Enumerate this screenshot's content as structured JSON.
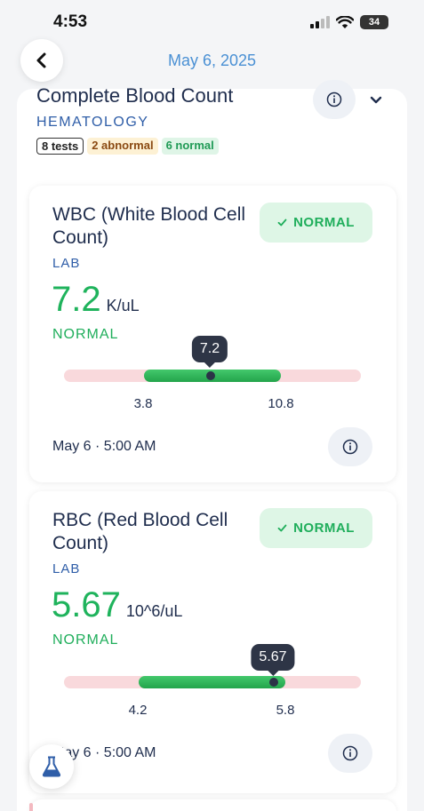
{
  "status_bar": {
    "time": "4:53",
    "battery": "34"
  },
  "header": {
    "date": "May 6, 2025"
  },
  "group": {
    "title": "Complete Blood Count",
    "category": "HEMATOLOGY",
    "badges": {
      "tests": "8 tests",
      "abnormal": "2 abnormal",
      "normal": "6 normal"
    }
  },
  "cards": [
    {
      "title": "WBC (White Blood Cell Count)",
      "source": "LAB",
      "status_pill": "NORMAL",
      "value": "7.2",
      "unit": "K/uL",
      "status_text": "NORMAL",
      "range": {
        "low": "3.8",
        "high": "10.8",
        "marker": "7.2"
      },
      "timestamp": "May 6 · 5:00 AM"
    },
    {
      "title": "RBC (Red Blood Cell Count)",
      "source": "LAB",
      "status_pill": "NORMAL",
      "value": "5.67",
      "unit": "10^6/uL",
      "status_text": "NORMAL",
      "range": {
        "low": "4.2",
        "high": "5.8",
        "marker": "5.67"
      },
      "timestamp": "May 6 · 5:00 AM"
    }
  ],
  "colors": {
    "accent": "#4a90d4",
    "normal": "#1fae5b",
    "range_bg": "#f9d9dc"
  },
  "icons": {
    "back": "chevron-left-icon",
    "info": "info-icon",
    "expand": "chevron-down-icon",
    "check": "check-icon",
    "fab": "flask-icon"
  }
}
